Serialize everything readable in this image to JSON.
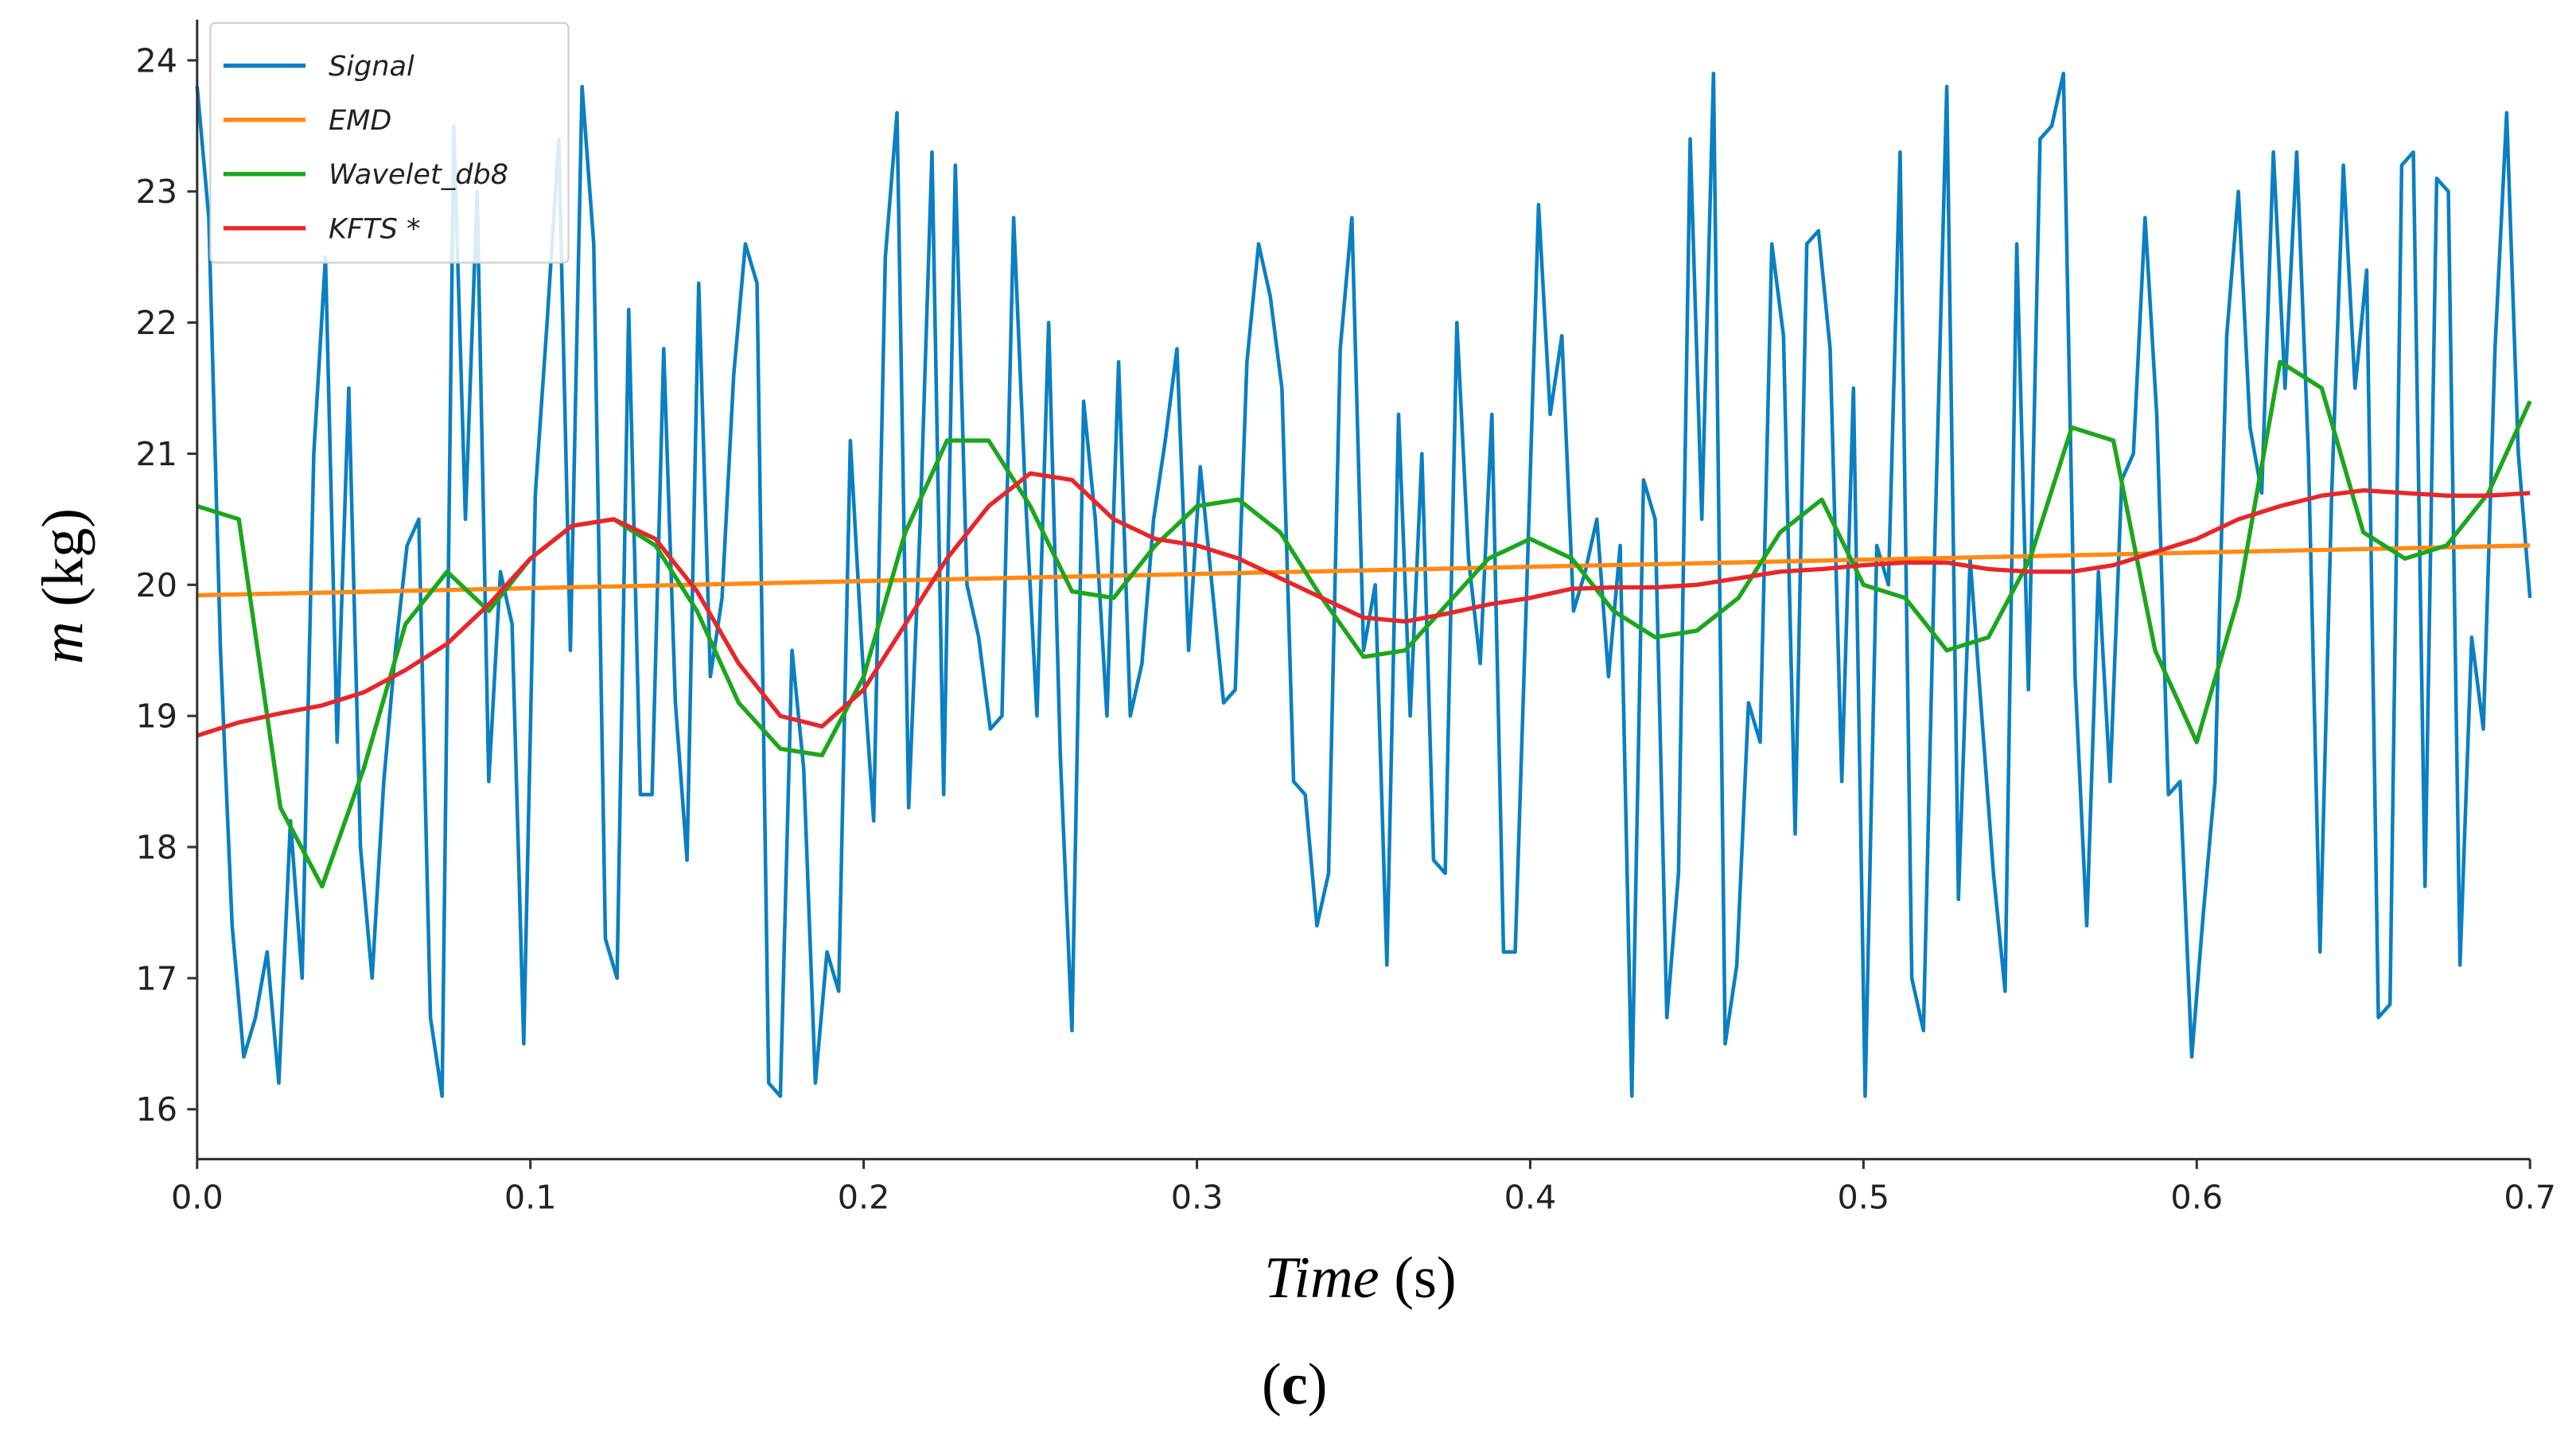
{
  "chart_data": {
    "type": "line",
    "xlabel_parts": [
      "Time",
      "(s)"
    ],
    "ylabel_parts": [
      "m",
      "(kg)"
    ],
    "caption_parts": [
      "(",
      "c",
      ")"
    ],
    "xlim": [
      0,
      0.7
    ],
    "ylim": [
      15.62,
      24.31
    ],
    "xticks": [
      {
        "value": 0,
        "label": "0.0"
      },
      0.1,
      0.2,
      0.3,
      0.4,
      0.5,
      0.6,
      0.7
    ],
    "yticks": [
      16,
      17,
      18,
      19,
      20,
      21,
      22,
      23,
      24
    ],
    "legend": "upper left",
    "series": [
      {
        "name": "Signal",
        "color": "#0a7fc2",
        "x": [
          0,
          0.0035,
          0.007,
          0.0105,
          0.014,
          0.0175,
          0.021,
          0.0245,
          0.028,
          0.0315,
          0.035,
          0.0385,
          0.042,
          0.0455,
          0.049,
          0.0525,
          0.056,
          0.0595,
          0.063,
          0.0665,
          0.07,
          0.0735,
          0.077,
          0.0805,
          0.084,
          0.0875,
          0.091,
          0.0945,
          0.098,
          0.1015,
          0.105,
          0.1085,
          0.112,
          0.1155,
          0.119,
          0.1225,
          0.126,
          0.1295,
          0.133,
          0.1365,
          0.14,
          0.1435,
          0.147,
          0.1505,
          0.154,
          0.1575,
          0.161,
          0.1645,
          0.168,
          0.1715,
          0.175,
          0.1785,
          0.182,
          0.1855,
          0.189,
          0.1925,
          0.196,
          0.1995,
          0.203,
          0.2065,
          0.21,
          0.2135,
          0.217,
          0.2205,
          0.224,
          0.2275,
          0.231,
          0.2345,
          0.238,
          0.2415,
          0.245,
          0.2485,
          0.252,
          0.2555,
          0.259,
          0.2625,
          0.266,
          0.2695,
          0.273,
          0.2765,
          0.28,
          0.2835,
          0.287,
          0.2905,
          0.294,
          0.2975,
          0.301,
          0.3045,
          0.308,
          0.3115,
          0.315,
          0.3185,
          0.322,
          0.3255,
          0.329,
          0.3325,
          0.336,
          0.3395,
          0.343,
          0.3465,
          0.35,
          0.3535,
          0.357,
          0.3605,
          0.364,
          0.3675,
          0.371,
          0.3745,
          0.378,
          0.3815,
          0.385,
          0.3885,
          0.392,
          0.3955,
          0.399,
          0.4025,
          0.406,
          0.4095,
          0.413,
          0.4165,
          0.42,
          0.4235,
          0.427,
          0.4305,
          0.434,
          0.4375,
          0.441,
          0.4445,
          0.448,
          0.4515,
          0.455,
          0.4585,
          0.462,
          0.4655,
          0.469,
          0.4725,
          0.476,
          0.4795,
          0.483,
          0.4865,
          0.49,
          0.4935,
          0.497,
          0.5005,
          0.504,
          0.5075,
          0.511,
          0.5145,
          0.518,
          0.5215,
          0.525,
          0.5285,
          0.532,
          0.5355,
          0.539,
          0.5425,
          0.546,
          0.5495,
          0.553,
          0.5565,
          0.56,
          0.5635,
          0.567,
          0.5705,
          0.574,
          0.5775,
          0.581,
          0.5845,
          0.588,
          0.5915,
          0.595,
          0.5985,
          0.602,
          0.6055,
          0.609,
          0.6125,
          0.616,
          0.6195,
          0.623,
          0.6265,
          0.63,
          0.6335,
          0.637,
          0.6405,
          0.644,
          0.6475,
          0.651,
          0.6545,
          0.658,
          0.6615,
          0.665,
          0.6685,
          0.672,
          0.6755,
          0.679,
          0.6825,
          0.686,
          0.6895,
          0.693,
          0.6965,
          0.7
        ],
        "values": [
          23.8,
          22.8,
          19.5,
          17.4,
          16.4,
          16.7,
          17.2,
          16.2,
          18.2,
          17.0,
          21.0,
          22.5,
          18.8,
          21.5,
          18.0,
          17.0,
          18.5,
          19.5,
          20.3,
          20.5,
          16.7,
          16.1,
          23.5,
          20.5,
          23.0,
          18.5,
          20.1,
          19.7,
          16.5,
          20.7,
          22.0,
          23.4,
          19.5,
          23.8,
          22.6,
          17.3,
          17.0,
          22.1,
          18.4,
          18.4,
          21.8,
          19.1,
          17.9,
          22.3,
          19.3,
          19.9,
          21.6,
          22.6,
          22.3,
          16.2,
          16.1,
          19.5,
          18.6,
          16.2,
          17.2,
          16.9,
          21.1,
          19.5,
          18.2,
          22.5,
          23.6,
          18.3,
          20.5,
          23.3,
          18.4,
          23.2,
          20.0,
          19.6,
          18.9,
          19.0,
          22.8,
          20.7,
          19.0,
          22.0,
          18.7,
          16.6,
          21.4,
          20.5,
          19.0,
          21.7,
          19.0,
          19.4,
          20.5,
          21.1,
          21.8,
          19.5,
          20.9,
          20.0,
          19.1,
          19.2,
          21.7,
          22.6,
          22.2,
          21.5,
          18.5,
          18.4,
          17.4,
          17.8,
          21.8,
          22.8,
          19.5,
          20.0,
          17.1,
          21.3,
          19.0,
          21.0,
          17.9,
          17.8,
          22.0,
          20.2,
          19.4,
          21.3,
          17.2,
          17.2,
          20.0,
          22.9,
          21.3,
          21.9,
          19.8,
          20.1,
          20.5,
          19.3,
          20.3,
          16.1,
          20.8,
          20.5,
          16.7,
          17.8,
          23.4,
          20.5,
          23.9,
          16.5,
          17.1,
          19.1,
          18.8,
          22.6,
          21.9,
          18.1,
          22.6,
          22.7,
          21.8,
          18.5,
          21.5,
          16.1,
          20.3,
          20.0,
          23.3,
          17.0,
          16.6,
          20.4,
          23.8,
          17.6,
          20.2,
          19.0,
          17.8,
          16.9,
          22.6,
          19.2,
          23.4,
          23.5,
          23.9,
          19.3,
          17.4,
          20.1,
          18.5,
          20.8,
          21.0,
          22.8,
          21.3,
          18.4,
          18.5,
          16.4,
          17.5,
          18.5,
          21.9,
          23.0,
          21.2,
          20.7,
          23.3,
          21.5,
          23.3,
          21.0,
          17.2,
          20.7,
          23.2,
          21.5,
          22.4,
          16.7,
          16.8,
          23.2,
          23.3,
          17.7,
          23.1,
          23.0,
          17.1,
          19.6,
          18.9,
          21.8,
          23.6,
          21.0,
          19.9
        ]
      },
      {
        "name": "EMD",
        "color": "#ff8a12",
        "x": [
          0,
          0.7
        ],
        "values": [
          19.92,
          20.3
        ]
      },
      {
        "name": "Wavelet_db8",
        "color": "#1ca61c",
        "x": [
          0,
          0.0125,
          0.025,
          0.0375,
          0.05,
          0.0625,
          0.075,
          0.0875,
          0.1,
          0.1125,
          0.125,
          0.1375,
          0.15,
          0.1625,
          0.175,
          0.1875,
          0.2,
          0.2125,
          0.225,
          0.2375,
          0.25,
          0.2625,
          0.275,
          0.2875,
          0.3,
          0.3125,
          0.325,
          0.3375,
          0.35,
          0.3625,
          0.375,
          0.3875,
          0.4,
          0.4125,
          0.425,
          0.4375,
          0.45,
          0.4625,
          0.475,
          0.4875,
          0.5,
          0.5125,
          0.525,
          0.5375,
          0.55,
          0.5625,
          0.575,
          0.5875,
          0.6,
          0.6125,
          0.625,
          0.6375,
          0.65,
          0.6625,
          0.675,
          0.6875,
          0.7
        ],
        "values": [
          20.6,
          20.5,
          18.3,
          17.7,
          18.6,
          19.7,
          20.1,
          19.8,
          20.2,
          20.45,
          20.5,
          20.3,
          19.8,
          19.1,
          18.75,
          18.7,
          19.3,
          20.4,
          21.1,
          21.1,
          20.6,
          19.95,
          19.9,
          20.3,
          20.6,
          20.65,
          20.4,
          19.9,
          19.45,
          19.5,
          19.85,
          20.2,
          20.35,
          20.2,
          19.8,
          19.6,
          19.65,
          19.9,
          20.4,
          20.65,
          20.0,
          19.9,
          19.5,
          19.6,
          20.2,
          21.2,
          21.1,
          19.5,
          18.8,
          19.9,
          21.7,
          21.5,
          20.4,
          20.2,
          20.3,
          20.7,
          21.4
        ]
      },
      {
        "name": "KFTS *",
        "color": "#e8262a",
        "x": [
          0,
          0.0125,
          0.025,
          0.0375,
          0.05,
          0.0625,
          0.075,
          0.0875,
          0.1,
          0.1125,
          0.125,
          0.1375,
          0.15,
          0.1625,
          0.175,
          0.1875,
          0.2,
          0.2125,
          0.225,
          0.2375,
          0.25,
          0.2625,
          0.275,
          0.2875,
          0.3,
          0.3125,
          0.325,
          0.3375,
          0.35,
          0.3625,
          0.375,
          0.3875,
          0.4,
          0.4125,
          0.425,
          0.4375,
          0.45,
          0.4625,
          0.475,
          0.4875,
          0.5,
          0.5125,
          0.525,
          0.5375,
          0.55,
          0.5625,
          0.575,
          0.5875,
          0.6,
          0.6125,
          0.625,
          0.6375,
          0.65,
          0.6625,
          0.675,
          0.6875,
          0.7
        ],
        "values": [
          18.85,
          18.95,
          19.02,
          19.08,
          19.18,
          19.35,
          19.55,
          19.85,
          20.2,
          20.45,
          20.5,
          20.35,
          19.95,
          19.4,
          19.0,
          18.92,
          19.2,
          19.7,
          20.2,
          20.6,
          20.85,
          20.8,
          20.5,
          20.35,
          20.3,
          20.2,
          20.05,
          19.9,
          19.75,
          19.72,
          19.78,
          19.85,
          19.9,
          19.97,
          19.98,
          19.98,
          20.0,
          20.05,
          20.1,
          20.12,
          20.15,
          20.17,
          20.17,
          20.12,
          20.1,
          20.1,
          20.15,
          20.25,
          20.35,
          20.5,
          20.6,
          20.68,
          20.72,
          20.7,
          20.68,
          20.68,
          20.7
        ]
      }
    ]
  }
}
